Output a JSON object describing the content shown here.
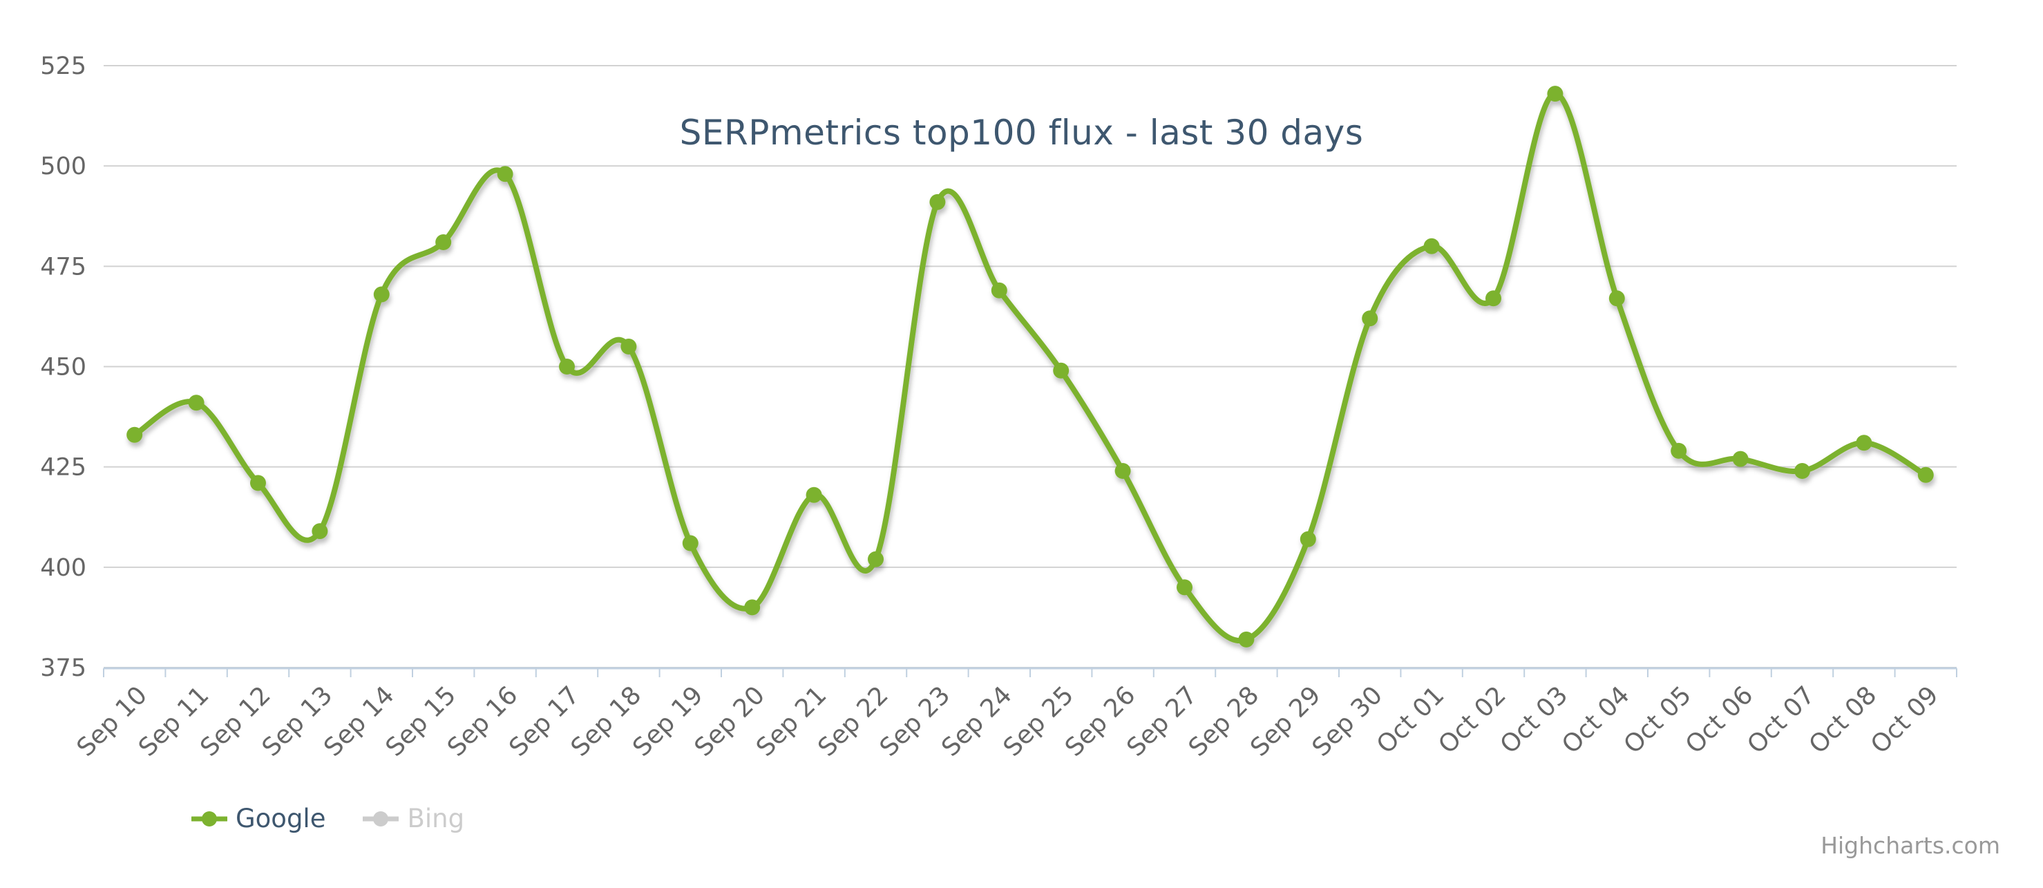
{
  "chart_data": {
    "type": "line",
    "title": "SERPmetrics top100 flux - last 30 days",
    "categories": [
      "Sep 10",
      "Sep 11",
      "Sep 12",
      "Sep 13",
      "Sep 14",
      "Sep 15",
      "Sep 16",
      "Sep 17",
      "Sep 18",
      "Sep 19",
      "Sep 20",
      "Sep 21",
      "Sep 22",
      "Sep 23",
      "Sep 24",
      "Sep 25",
      "Sep 26",
      "Sep 27",
      "Sep 28",
      "Sep 29",
      "Sep 30",
      "Oct 01",
      "Oct 02",
      "Oct 03",
      "Oct 04",
      "Oct 05",
      "Oct 06",
      "Oct 07",
      "Oct 08",
      "Oct 09"
    ],
    "series": [
      {
        "name": "Google",
        "color": "#7CB22F",
        "visible": true,
        "values": [
          433,
          441,
          421,
          409,
          468,
          481,
          498,
          450,
          455,
          406,
          390,
          418,
          402,
          491,
          469,
          449,
          424,
          395,
          382,
          407,
          462,
          480,
          467,
          518,
          467,
          429,
          427,
          424,
          431,
          423
        ]
      },
      {
        "name": "Bing",
        "color": "#CCCCCC",
        "visible": false,
        "values": []
      }
    ],
    "xlabel": "",
    "ylabel": "",
    "ylim": [
      375,
      525
    ],
    "yticks": [
      375,
      400,
      425,
      450,
      475,
      500,
      525
    ],
    "grid": true,
    "legend_position": "bottom-left",
    "x_label_rotation": -45
  },
  "legend": {
    "items": [
      {
        "label": "Google",
        "color": "#7CB22F",
        "text_color": "#3E576F",
        "active": true
      },
      {
        "label": "Bing",
        "color": "#CCCCCC",
        "text_color": "#CCCCCC",
        "active": false
      }
    ]
  },
  "credits": {
    "text": "Highcharts.com"
  },
  "colors": {
    "background": "#FFFFFF",
    "grid": "#D2D2D2",
    "axis_line": "#C0D0E0",
    "tick": "#C0D0E0",
    "axis_label": "#666666",
    "title": "#3E576F",
    "credits": "#999999"
  }
}
